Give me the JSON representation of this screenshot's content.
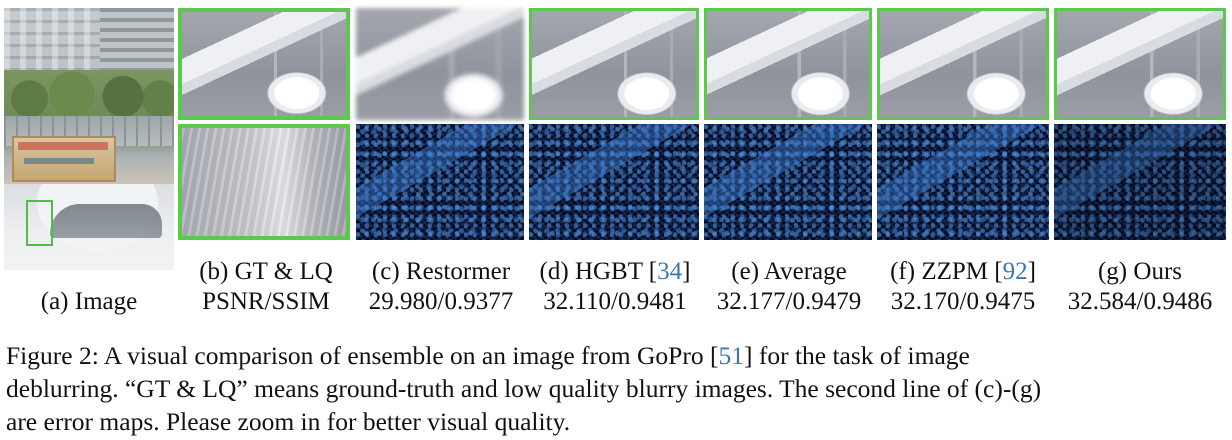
{
  "figure": {
    "overview_label": "(a) Image",
    "columns": [
      {
        "id": "b",
        "label_pre": "(b) GT & LQ",
        "cite": "",
        "label_post": "",
        "metric": "PSNR/SSIM"
      },
      {
        "id": "c",
        "label_pre": "(c) Restormer",
        "cite": "",
        "label_post": "",
        "metric": "29.980/0.9377"
      },
      {
        "id": "d",
        "label_pre": "(d) HGBT [",
        "cite": "34",
        "label_post": "]",
        "metric": "32.110/0.9481"
      },
      {
        "id": "e",
        "label_pre": "(e) Average",
        "cite": "",
        "label_post": "",
        "metric": "32.177/0.9479"
      },
      {
        "id": "f",
        "label_pre": "(f) ZZPM [",
        "cite": "92",
        "label_post": "]",
        "metric": "32.170/0.9475"
      },
      {
        "id": "g",
        "label_pre": "(g) Ours",
        "cite": "",
        "label_post": "",
        "metric": "32.584/0.9486"
      }
    ],
    "highlight_color": "#5cc84e",
    "citation_color": "#3b76b3"
  },
  "caption": {
    "line1_pre": "Figure 2:  A visual comparison of ensemble on an image from GoPro [",
    "line1_cite": "51",
    "line1_post": "] for the task of image",
    "line2": "deblurring. “GT & LQ” means ground-truth and low quality blurry images. The second line of (c)-(g)",
    "line3": "are error maps. Please zoom in for better visual quality."
  }
}
